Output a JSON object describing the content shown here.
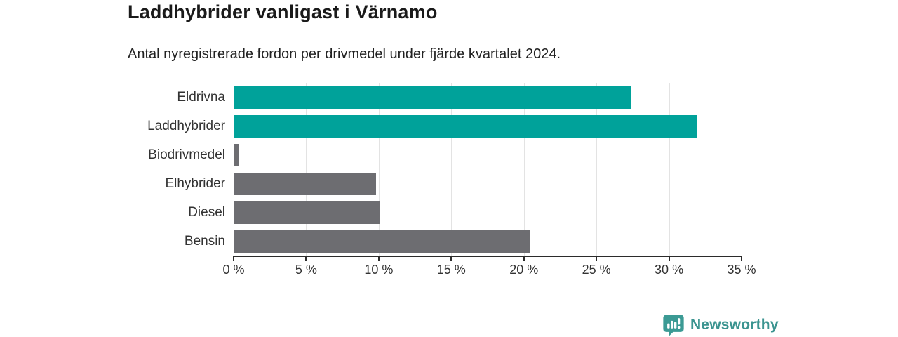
{
  "header": {
    "title": "Laddhybrider vanligast i Värnamo",
    "subtitle": "Antal nyregistrerade fordon per drivmedel under fjärde kvartalet 2024."
  },
  "chart_data": {
    "type": "bar",
    "orientation": "horizontal",
    "title": "Laddhybrider vanligast i Värnamo",
    "subtitle": "Antal nyregistrerade fordon per drivmedel under fjärde kvartalet 2024.",
    "categories": [
      "Eldrivna",
      "Laddhybrider",
      "Biodrivmedel",
      "Elhybrider",
      "Diesel",
      "Bensin"
    ],
    "values": [
      27.4,
      31.9,
      0.4,
      9.8,
      10.1,
      20.4
    ],
    "unit": "%",
    "bar_colors": [
      "#00a29a",
      "#00a29a",
      "#6d6d71",
      "#6d6d71",
      "#6d6d71",
      "#6d6d71"
    ],
    "xlim": [
      0,
      35
    ],
    "x_tick_values": [
      0,
      5,
      10,
      15,
      20,
      25,
      30,
      35
    ],
    "x_tick_labels": [
      "0 %",
      "5 %",
      "10 %",
      "15 %",
      "20 %",
      "25 %",
      "30 %",
      "35 %"
    ],
    "grid": true,
    "legend": "none"
  },
  "colors": {
    "accent_teal": "#00a29a",
    "neutral_gray": "#6d6d71",
    "gridline": "#e3e3e3",
    "axis": "#2b2b2b",
    "logo_teal": "#3b9490"
  },
  "footer": {
    "brand": "Newsworthy"
  }
}
